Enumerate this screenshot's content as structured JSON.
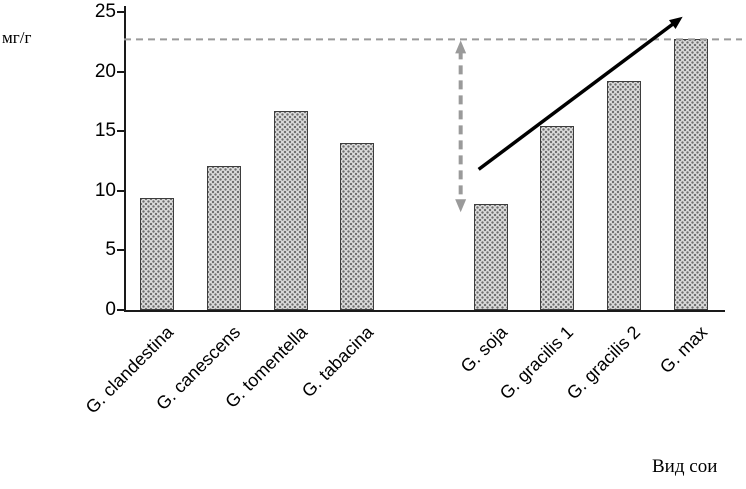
{
  "chart_data": {
    "type": "bar",
    "title": "",
    "ylabel": "мг/г",
    "xlabel": "Вид сои",
    "ylim": [
      0,
      25
    ],
    "yticks": [
      0,
      5,
      10,
      15,
      20,
      25
    ],
    "categories": [
      "G. clandestina",
      "G. canescens",
      "G. tomentella",
      "G. tabacina",
      "G. soja",
      "G. gracilis 1",
      "G. gracilis 2",
      "G. max"
    ],
    "values": [
      9.4,
      12.1,
      16.7,
      14.0,
      8.9,
      15.4,
      19.2,
      22.7
    ],
    "group_gap_after_index": 3,
    "grid": false,
    "legend": "none",
    "bar_fill": "stippled-gray",
    "bar_border": "#3d3d3d",
    "annotations": {
      "reference_line": {
        "y": 22.7,
        "style": "dashed",
        "color": "#9a9a9a",
        "extends": "full-width"
      },
      "difference_arrow": {
        "near_category": "G. soja",
        "from_value": 22.7,
        "to_value": 8.2,
        "double_headed": true,
        "style": "dashed",
        "color": "#9a9a9a"
      },
      "trend_arrow": {
        "from_category": "G. soja",
        "from_value": 11.8,
        "to_category": "G. max",
        "to_value": 24.6,
        "style": "solid",
        "color": "#000000"
      }
    }
  }
}
